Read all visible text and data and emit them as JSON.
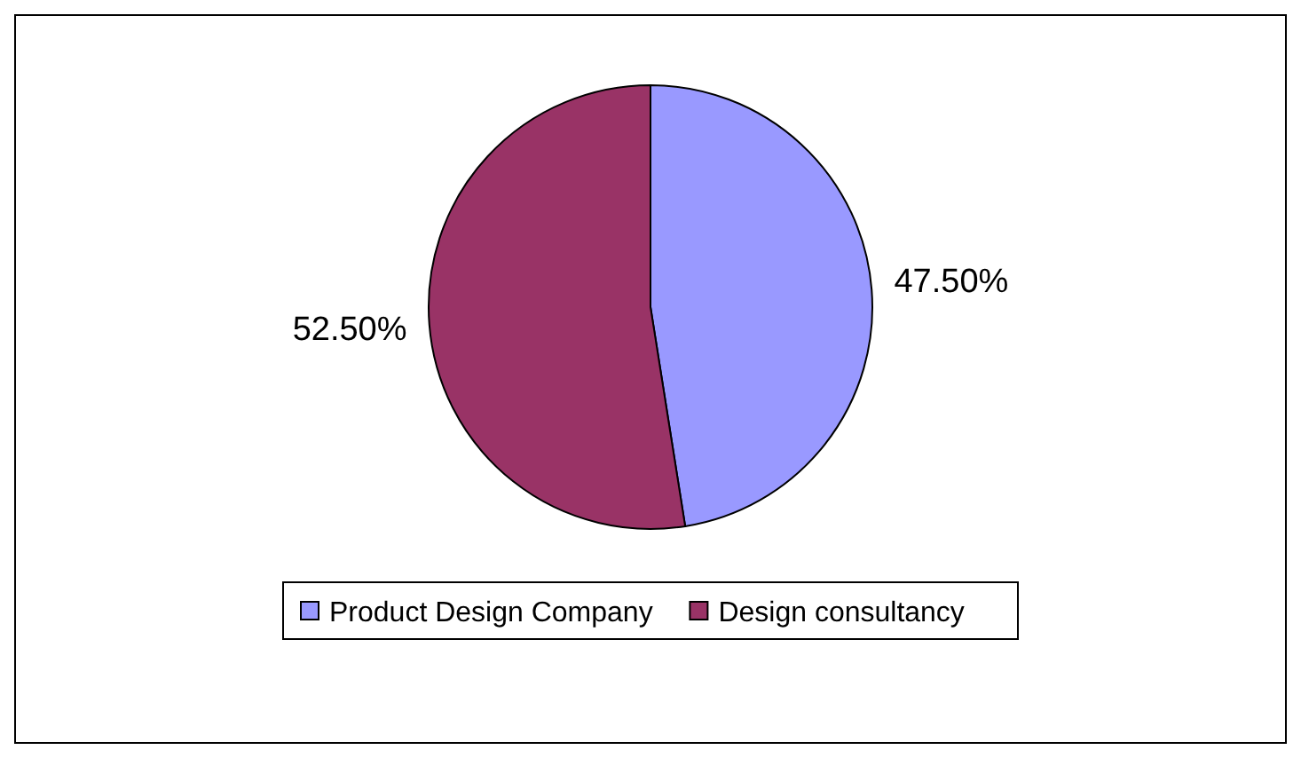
{
  "chart_data": {
    "type": "pie",
    "categories": [
      "Product Design Company",
      "Design consultancy"
    ],
    "values": [
      47.5,
      52.5
    ],
    "colors": [
      "#9999ff",
      "#993366"
    ],
    "value_labels": [
      "47.50%",
      "52.50%"
    ],
    "legend": "bottom"
  }
}
